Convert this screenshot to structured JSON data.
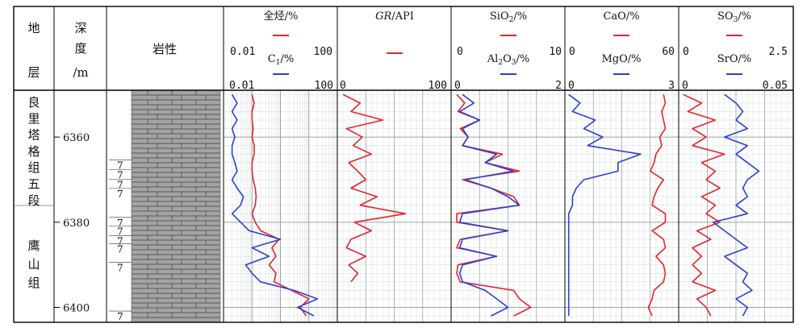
{
  "headers": {
    "formation": [
      "地",
      "层"
    ],
    "depth": [
      "深",
      "度",
      "/m"
    ],
    "lithology": "岩性",
    "track1": {
      "top": "全烃/%",
      "top_min": "0.01",
      "top_max": "100",
      "bottom": "C1/%",
      "bottom_min": "0.01",
      "bottom_max": "100"
    },
    "track2": {
      "top": "GR/API",
      "bottom_min": "0",
      "bottom_max": "100"
    },
    "track3": {
      "top": "SiO2/%",
      "top_min": "0",
      "top_max": "10",
      "bottom": "Al2O3/%",
      "bottom_min": "0",
      "bottom_max": "2"
    },
    "track4": {
      "top": "CaO/%",
      "top_min": "0",
      "top_max": "60",
      "bottom": "MgO/%",
      "bottom_min": "0",
      "bottom_max": "3"
    },
    "track5": {
      "top": "SO3/%",
      "top_min": "0",
      "top_max": "2.5",
      "bottom": "SrO/%",
      "bottom_min": "0",
      "bottom_max": "0.05"
    }
  },
  "formations": [
    {
      "name": "良里塔格组五段",
      "chars": [
        "良",
        "里",
        "塔",
        "格",
        "组",
        "五",
        "段"
      ]
    },
    {
      "name": "鹰山组",
      "chars": [
        "鹰",
        "山",
        "组"
      ]
    }
  ],
  "depth_ticks": [
    "6360",
    "6380",
    "6400"
  ],
  "lithology_marks": [
    "7",
    "7",
    "7",
    "7",
    "7",
    "7",
    "7",
    "7",
    "7",
    "7"
  ],
  "colors": {
    "red": "#e8232a",
    "blue": "#2c3fd6",
    "grid": "#9aa6aa",
    "lith": "#a3a3a3",
    "border": "#000000"
  },
  "chart_data": {
    "type": "line",
    "depth_axis": {
      "label": "深度/m",
      "range": [
        6349,
        6403.5
      ],
      "ticks": [
        6360,
        6380,
        6400
      ]
    },
    "formation_boundary_depth": 6377,
    "depth": [
      6350,
      6352,
      6354,
      6356,
      6358,
      6360,
      6362,
      6364,
      6366,
      6368,
      6370,
      6372,
      6374,
      6376,
      6378,
      6380,
      6382,
      6384,
      6386,
      6388,
      6390,
      6392,
      6394,
      6396,
      6398,
      6400,
      6402
    ],
    "tracks": [
      {
        "title": "全烃/% & C1/%",
        "scale": "log",
        "range": [
          0.01,
          100
        ],
        "series": [
          {
            "name": "全烃/%",
            "color": "red",
            "values": [
              0.1,
              0.12,
              0.1,
              0.1,
              0.11,
              0.1,
              0.12,
              0.12,
              0.1,
              0.1,
              0.11,
              0.13,
              0.14,
              0.13,
              0.1,
              0.13,
              0.2,
              0.9,
              0.5,
              0.7,
              0.4,
              0.7,
              0.6,
              2.5,
              10,
              5,
              8
            ]
          },
          {
            "name": "C1/%",
            "color": "blue",
            "values": [
              0.02,
              0.03,
              0.02,
              0.03,
              0.02,
              0.025,
              0.02,
              0.02,
              0.025,
              0.03,
              0.02,
              0.03,
              0.05,
              0.04,
              0.02,
              0.04,
              0.08,
              1.0,
              0.1,
              0.4,
              0.06,
              0.1,
              0.2,
              3,
              20,
              4,
              15
            ]
          }
        ]
      },
      {
        "title": "GR/API",
        "scale": "linear",
        "range": [
          0,
          100
        ],
        "series": [
          {
            "name": "GR/API",
            "color": "red",
            "values": [
              5,
              20,
              12,
              40,
              8,
              22,
              14,
              30,
              10,
              18,
              25,
              12,
              35,
              20,
              60,
              15,
              30,
              12,
              8,
              25,
              10,
              18,
              12,
              null,
              null,
              null,
              null
            ]
          }
        ]
      },
      {
        "title": "SiO2/% & Al2O3/%",
        "scale": "linear",
        "series": [
          {
            "name": "SiO2/%",
            "color": "red",
            "range": [
              0,
              10
            ],
            "values": [
              0.5,
              1.2,
              0.6,
              2.5,
              0.8,
              1.5,
              1.0,
              4.5,
              3.0,
              6.0,
              1.0,
              3.5,
              5.5,
              6.0,
              0.5,
              0.5,
              5.0,
              0.8,
              0.5,
              4.0,
              0.6,
              0.5,
              0.8,
              5.5,
              6.0,
              7.0,
              5.5
            ]
          },
          {
            "name": "Al2O3/%",
            "color": "blue",
            "range": [
              0,
              2
            ],
            "values": [
              0.2,
              0.4,
              0.15,
              0.5,
              0.2,
              0.3,
              0.2,
              0.8,
              0.6,
              1.1,
              0.25,
              0.7,
              1.0,
              1.2,
              0.2,
              0.15,
              1.0,
              0.2,
              0.15,
              0.8,
              0.2,
              0.15,
              0.2,
              0.6,
              0.8,
              1.0,
              0.7
            ]
          }
        ]
      },
      {
        "title": "CaO/% & MgO/%",
        "scale": "linear",
        "series": [
          {
            "name": "CaO/%",
            "color": "red",
            "range": [
              0,
              60
            ],
            "values": [
              52,
              53,
              51,
              52,
              53,
              50,
              51,
              48,
              47,
              45,
              52,
              49,
              47,
              46,
              53,
              53,
              46,
              52,
              53,
              48,
              52,
              53,
              52,
              47,
              46,
              44,
              46
            ]
          },
          {
            "name": "MgO/%",
            "color": "blue",
            "range": [
              0,
              3
            ],
            "values": [
              0.1,
              0.4,
              0.2,
              0.8,
              0.5,
              1.0,
              0.6,
              2.0,
              1.4,
              1.4,
              0.5,
              0.3,
              0.2,
              0.2,
              0.1,
              0.1,
              0.1,
              0.1,
              0.1,
              0.1,
              0.1,
              0.1,
              0.1,
              0.1,
              0.1,
              0.1,
              0.1
            ]
          }
        ]
      },
      {
        "title": "SO3/% & SrO/%",
        "scale": "linear",
        "series": [
          {
            "name": "SO3/%",
            "color": "red",
            "range": [
              0,
              2.5
            ],
            "values": [
              0.1,
              0.5,
              0.2,
              0.8,
              0.3,
              0.6,
              0.3,
              1.0,
              0.5,
              0.8,
              0.6,
              0.9,
              0.5,
              0.8,
              0.6,
              0.9,
              0.4,
              0.7,
              0.3,
              0.5,
              0.3,
              0.5,
              0.3,
              0.8,
              0.4,
              0.6,
              0.7
            ]
          },
          {
            "name": "SrO/%",
            "color": "blue",
            "range": [
              0,
              0.05
            ],
            "values": [
              0.02,
              0.025,
              0.028,
              0.025,
              0.03,
              0.02,
              0.03,
              0.025,
              0.03,
              0.035,
              0.03,
              0.028,
              0.03,
              0.025,
              0.03,
              0.015,
              0.02,
              0.025,
              0.03,
              0.02,
              0.025,
              0.03,
              0.028,
              0.032,
              0.025,
              0.03,
              0.028
            ]
          }
        ]
      }
    ]
  }
}
